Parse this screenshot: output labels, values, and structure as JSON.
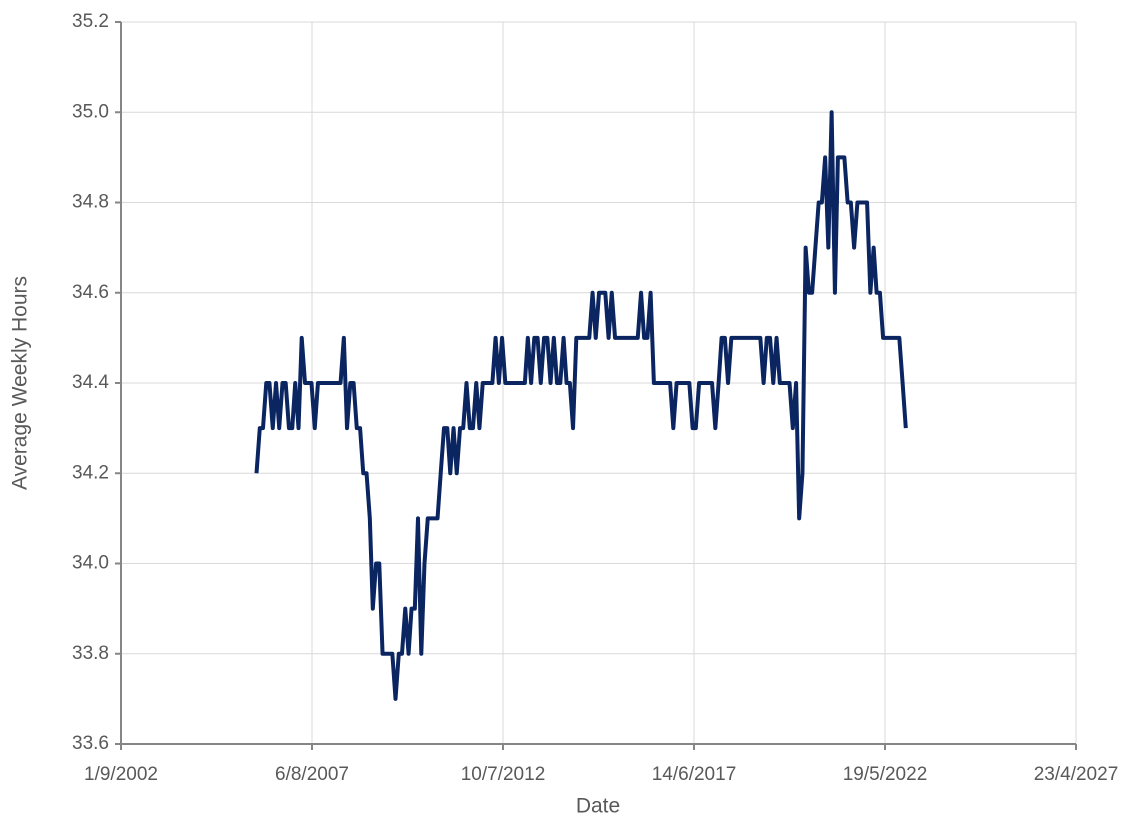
{
  "chart_data": {
    "type": "line",
    "x_label": "Date",
    "y_label": "Average Weekly Hours",
    "x": [
      "1/3/2006",
      "1/4/2006",
      "1/5/2006",
      "1/6/2006",
      "1/7/2006",
      "1/8/2006",
      "1/9/2006",
      "1/10/2006",
      "1/11/2006",
      "1/12/2006",
      "1/1/2007",
      "1/2/2007",
      "1/3/2007",
      "1/4/2007",
      "1/5/2007",
      "1/6/2007",
      "1/7/2007",
      "1/8/2007",
      "1/9/2007",
      "1/10/2007",
      "1/11/2007",
      "1/12/2007",
      "1/1/2008",
      "1/2/2008",
      "1/3/2008",
      "1/4/2008",
      "1/5/2008",
      "1/6/2008",
      "1/7/2008",
      "1/8/2008",
      "1/9/2008",
      "1/10/2008",
      "1/11/2008",
      "1/12/2008",
      "1/1/2009",
      "1/2/2009",
      "1/3/2009",
      "1/4/2009",
      "1/5/2009",
      "1/6/2009",
      "1/7/2009",
      "1/8/2009",
      "1/9/2009",
      "1/10/2009",
      "1/11/2009",
      "1/12/2009",
      "1/1/2010",
      "1/2/2010",
      "1/3/2010",
      "1/4/2010",
      "1/5/2010",
      "1/6/2010",
      "1/7/2010",
      "1/8/2010",
      "1/9/2010",
      "1/10/2010",
      "1/11/2010",
      "1/12/2010",
      "1/1/2011",
      "1/2/2011",
      "1/3/2011",
      "1/4/2011",
      "1/5/2011",
      "1/6/2011",
      "1/7/2011",
      "1/8/2011",
      "1/9/2011",
      "1/10/2011",
      "1/11/2011",
      "1/12/2011",
      "1/1/2012",
      "1/2/2012",
      "1/3/2012",
      "1/4/2012",
      "1/5/2012",
      "1/6/2012",
      "1/7/2012",
      "1/8/2012",
      "1/9/2012",
      "1/10/2012",
      "1/11/2012",
      "1/12/2012",
      "1/1/2013",
      "1/2/2013",
      "1/3/2013",
      "1/4/2013",
      "1/5/2013",
      "1/6/2013",
      "1/7/2013",
      "1/8/2013",
      "1/9/2013",
      "1/10/2013",
      "1/11/2013",
      "1/12/2013",
      "1/1/2014",
      "1/2/2014",
      "1/3/2014",
      "1/4/2014",
      "1/5/2014",
      "1/6/2014",
      "1/7/2014",
      "1/8/2014",
      "1/9/2014",
      "1/10/2014",
      "1/11/2014",
      "1/12/2014",
      "1/1/2015",
      "1/2/2015",
      "1/3/2015",
      "1/4/2015",
      "1/5/2015",
      "1/6/2015",
      "1/7/2015",
      "1/8/2015",
      "1/9/2015",
      "1/10/2015",
      "1/11/2015",
      "1/12/2015",
      "1/1/2016",
      "1/2/2016",
      "1/3/2016",
      "1/4/2016",
      "1/5/2016",
      "1/6/2016",
      "1/7/2016",
      "1/8/2016",
      "1/9/2016",
      "1/10/2016",
      "1/11/2016",
      "1/12/2016",
      "1/1/2017",
      "1/2/2017",
      "1/3/2017",
      "1/4/2017",
      "1/5/2017",
      "1/6/2017",
      "1/7/2017",
      "1/8/2017",
      "1/9/2017",
      "1/10/2017",
      "1/11/2017",
      "1/12/2017",
      "1/1/2018",
      "1/2/2018",
      "1/3/2018",
      "1/4/2018",
      "1/5/2018",
      "1/6/2018",
      "1/7/2018",
      "1/8/2018",
      "1/9/2018",
      "1/10/2018",
      "1/11/2018",
      "1/12/2018",
      "1/1/2019",
      "1/2/2019",
      "1/3/2019",
      "1/4/2019",
      "1/5/2019",
      "1/6/2019",
      "1/7/2019",
      "1/8/2019",
      "1/9/2019",
      "1/10/2019",
      "1/11/2019",
      "1/12/2019",
      "1/1/2020",
      "1/2/2020",
      "1/3/2020",
      "1/4/2020",
      "1/5/2020",
      "1/6/2020",
      "1/7/2020",
      "1/8/2020",
      "1/9/2020",
      "1/10/2020",
      "1/11/2020",
      "1/12/2020",
      "1/1/2021",
      "1/2/2021",
      "1/3/2021",
      "1/4/2021",
      "1/5/2021",
      "1/6/2021",
      "1/7/2021",
      "1/8/2021",
      "1/9/2021",
      "1/10/2021",
      "1/11/2021",
      "1/12/2021",
      "1/1/2022",
      "1/2/2022",
      "1/3/2022",
      "1/4/2022",
      "1/5/2022",
      "1/6/2022",
      "1/7/2022",
      "1/8/2022",
      "1/9/2022",
      "1/10/2022",
      "1/11/2022",
      "1/12/2022"
    ],
    "series": [
      {
        "color": "#0b2561",
        "values": [
          34.2,
          34.3,
          34.3,
          34.4,
          34.4,
          34.3,
          34.4,
          34.3,
          34.4,
          34.4,
          34.3,
          34.3,
          34.4,
          34.3,
          34.5,
          34.4,
          34.4,
          34.4,
          34.3,
          34.4,
          34.4,
          34.4,
          34.4,
          34.4,
          34.4,
          34.4,
          34.4,
          34.5,
          34.3,
          34.4,
          34.4,
          34.3,
          34.3,
          34.2,
          34.2,
          34.1,
          33.9,
          34,
          34,
          33.8,
          33.8,
          33.8,
          33.8,
          33.7,
          33.8,
          33.8,
          33.9,
          33.8,
          33.9,
          33.9,
          34.1,
          33.8,
          34,
          34.1,
          34.1,
          34.1,
          34.1,
          34.2,
          34.3,
          34.3,
          34.2,
          34.3,
          34.2,
          34.3,
          34.3,
          34.4,
          34.3,
          34.3,
          34.4,
          34.3,
          34.4,
          34.4,
          34.4,
          34.4,
          34.5,
          34.4,
          34.5,
          34.4,
          34.4,
          34.4,
          34.4,
          34.4,
          34.4,
          34.4,
          34.5,
          34.4,
          34.5,
          34.5,
          34.4,
          34.5,
          34.5,
          34.4,
          34.5,
          34.4,
          34.4,
          34.5,
          34.4,
          34.4,
          34.3,
          34.5,
          34.5,
          34.5,
          34.5,
          34.5,
          34.6,
          34.5,
          34.6,
          34.6,
          34.6,
          34.5,
          34.6,
          34.5,
          34.5,
          34.5,
          34.5,
          34.5,
          34.5,
          34.5,
          34.5,
          34.6,
          34.5,
          34.5,
          34.6,
          34.4,
          34.4,
          34.4,
          34.4,
          34.4,
          34.4,
          34.3,
          34.4,
          34.4,
          34.4,
          34.4,
          34.4,
          34.3,
          34.3,
          34.4,
          34.4,
          34.4,
          34.4,
          34.4,
          34.3,
          34.4,
          34.5,
          34.5,
          34.4,
          34.5,
          34.5,
          34.5,
          34.5,
          34.5,
          34.5,
          34.5,
          34.5,
          34.5,
          34.5,
          34.4,
          34.5,
          34.5,
          34.4,
          34.5,
          34.4,
          34.4,
          34.4,
          34.4,
          34.3,
          34.4,
          34.1,
          34.2,
          34.7,
          34.6,
          34.6,
          34.7,
          34.8,
          34.8,
          34.9,
          34.7,
          35,
          34.6,
          34.9,
          34.9,
          34.9,
          34.8,
          34.8,
          34.7,
          34.8,
          34.8,
          34.8,
          34.8,
          34.6,
          34.7,
          34.6,
          34.6,
          34.5,
          34.5,
          34.5,
          34.5,
          34.5,
          34.5,
          34.4,
          34.3
        ]
      }
    ],
    "xlim": [
      "1/9/2002",
      "23/4/2027"
    ],
    "xticks": [
      "1/9/2002",
      "6/8/2007",
      "10/7/2012",
      "14/6/2017",
      "19/5/2022",
      "23/4/2027"
    ],
    "ylim": [
      33.6,
      35.2
    ],
    "yticks": [
      33.6,
      33.8,
      {
        "value": 34,
        "label": "34.0"
      },
      34.2,
      34.4,
      34.6,
      34.8,
      {
        "value": 35,
        "label": "35.0"
      },
      35.2
    ],
    "grid": true
  }
}
